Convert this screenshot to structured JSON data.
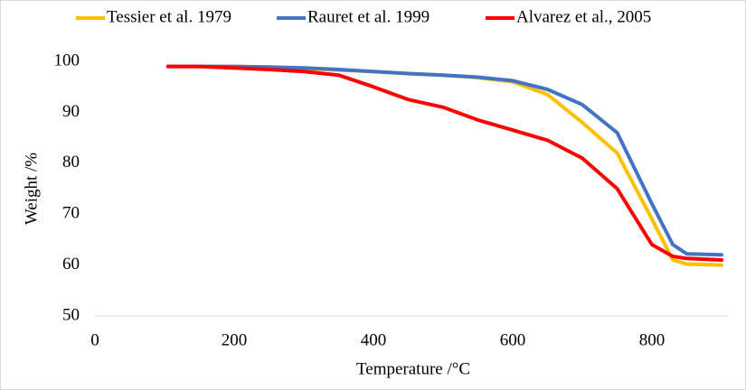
{
  "chart_data": {
    "type": "line",
    "x_label": "Temperature /°C",
    "y_label": "Weight /%",
    "x": [
      105,
      150,
      200,
      250,
      300,
      350,
      400,
      450,
      500,
      550,
      600,
      650,
      700,
      750,
      800,
      830,
      850,
      900
    ],
    "series": [
      {
        "name": "Tessier et al. 1979",
        "color": "#ffc000",
        "values": [
          99,
          99,
          99,
          98.8,
          98.6,
          98.3,
          98,
          97.6,
          97.3,
          96.8,
          96,
          93.5,
          88,
          82,
          69,
          61,
          60.2,
          60
        ]
      },
      {
        "name": "Rauret et al. 1999",
        "color": "#4472c4",
        "values": [
          99,
          99,
          99,
          98.9,
          98.7,
          98.4,
          98,
          97.6,
          97.3,
          96.9,
          96.2,
          94.5,
          91.5,
          86,
          72,
          64,
          62.2,
          62
        ]
      },
      {
        "name": "Alvarez et al., 2005",
        "color": "#ff0000",
        "values": [
          99,
          99,
          98.7,
          98.4,
          98,
          97.3,
          95,
          92.5,
          91,
          88.5,
          86.5,
          84.5,
          81,
          75,
          64,
          61.7,
          61.3,
          61
        ]
      }
    ],
    "xlim": [
      0,
      900
    ],
    "ylim": [
      50,
      100
    ],
    "xticks": [
      0,
      200,
      400,
      600,
      800
    ],
    "yticks": [
      50,
      60,
      70,
      80,
      90,
      100
    ],
    "legend": "top"
  }
}
